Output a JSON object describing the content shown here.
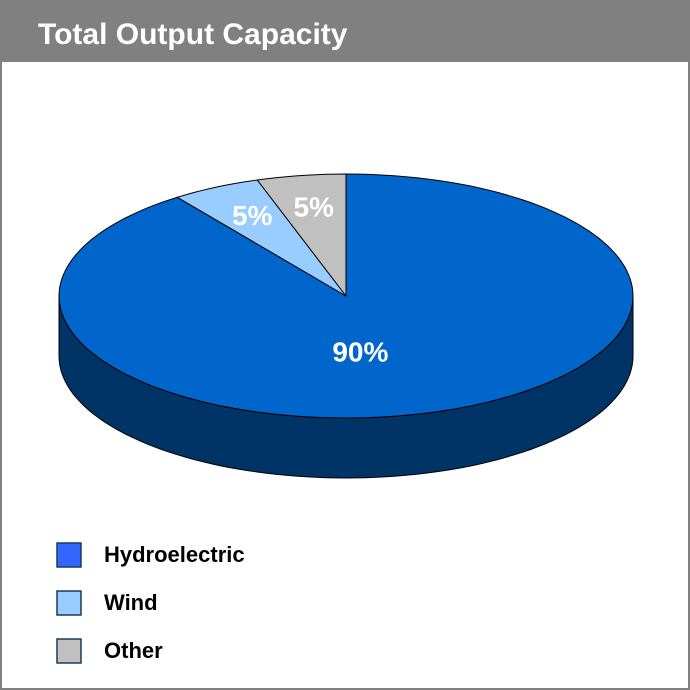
{
  "chart_data": {
    "type": "pie",
    "title": "Total Output Capacity",
    "categories": [
      "Hydroelectric",
      "Wind",
      "Other"
    ],
    "values": [
      90,
      5,
      5
    ],
    "value_labels": [
      "90%",
      "5%",
      "5%"
    ],
    "colors": [
      "#0066cc",
      "#99ccff",
      "#c0c0c0"
    ],
    "legend_colors": [
      "#3366ff",
      "#99ccff",
      "#c0c0c0"
    ]
  }
}
